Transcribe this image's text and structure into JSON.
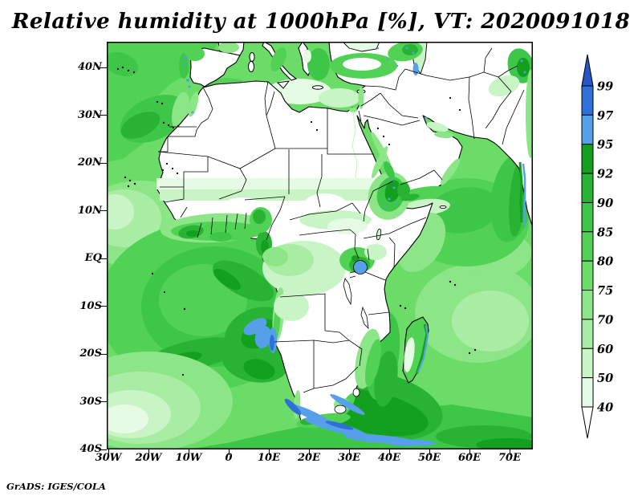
{
  "title": "Relative humidity at 1000hPa [%], VT: 2020091018",
  "attribution": "GrADS: IGES/COLA",
  "variable": "Relative humidity",
  "level": "1000hPa",
  "units": "%",
  "valid_time": "2020091018",
  "axes": {
    "lat_labels": [
      "40N",
      "30N",
      "20N",
      "10N",
      "EQ",
      "10S",
      "20S",
      "30S",
      "40S"
    ],
    "lon_labels": [
      "30W",
      "20W",
      "10W",
      "0",
      "10E",
      "20E",
      "30E",
      "40E",
      "50E",
      "60E",
      "70E"
    ]
  },
  "colorbar": {
    "labels": [
      "99",
      "97",
      "95",
      "92",
      "90",
      "85",
      "80",
      "75",
      "70",
      "60",
      "50",
      "40"
    ],
    "levels": [
      40,
      50,
      60,
      70,
      75,
      80,
      85,
      90,
      92,
      95,
      97,
      99
    ],
    "colors_top_to_bottom": [
      "#2456c8",
      "#2e70d8",
      "#55a0e8",
      "#12a01e",
      "#28b334",
      "#3dc648",
      "#52d254",
      "#6cdc68",
      "#8ce586",
      "#a9eda4",
      "#c9f4c6",
      "#e6fbe4",
      "#ffffff"
    ]
  },
  "chart_data": {
    "type": "heatmap",
    "title": "Relative humidity at 1000hPa [%], VT: 2020091018",
    "xlabel_ticks": [
      "30W",
      "20W",
      "10W",
      "0",
      "10E",
      "20E",
      "30E",
      "40E",
      "50E",
      "60E",
      "70E"
    ],
    "ylabel_ticks": [
      "40N",
      "30N",
      "20N",
      "10N",
      "EQ",
      "10S",
      "20S",
      "30S",
      "40S"
    ],
    "legend_levels_percent": [
      40,
      50,
      60,
      70,
      75,
      80,
      85,
      90,
      92,
      95,
      97,
      99
    ],
    "legend_position": "right",
    "region": "Africa and surrounding oceans, 30W-70E, 40S-40N"
  }
}
